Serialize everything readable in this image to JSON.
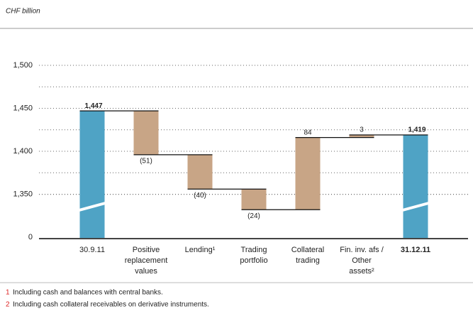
{
  "chart_data": {
    "type": "waterfall",
    "subtitle": "CHF billion",
    "categories": [
      [
        "30.9.11"
      ],
      [
        "Positive",
        "replacement",
        "values"
      ],
      [
        "Lending¹"
      ],
      [
        "Trading",
        "portfolio"
      ],
      [
        "Collateral",
        "trading"
      ],
      [
        "Fin. inv. afs /",
        "Other",
        "assets²"
      ],
      [
        "31.12.11"
      ]
    ],
    "values": [
      1447,
      -51,
      -40,
      -24,
      84,
      3,
      1419
    ],
    "value_labels": [
      "1,447",
      "(51)",
      "(40)",
      "(24)",
      "84",
      "3",
      "1,419"
    ],
    "total_color": "#4fa3c5",
    "delta_color": "#c8a586",
    "ylim": [
      1300,
      1500
    ],
    "yticks": [
      0,
      {
        "value": 1350,
        "label": "1,350"
      },
      {
        "value": 1400,
        "label": "1,400"
      },
      {
        "value": 1450,
        "label": "1,450"
      },
      {
        "value": 1500,
        "label": "1,500"
      }
    ],
    "grid": true,
    "footnotes": [
      {
        "marker": "1",
        "text": "Including cash and balances with central banks."
      },
      {
        "marker": "2",
        "text": "Including cash collateral receivables on derivative instruments."
      }
    ]
  }
}
